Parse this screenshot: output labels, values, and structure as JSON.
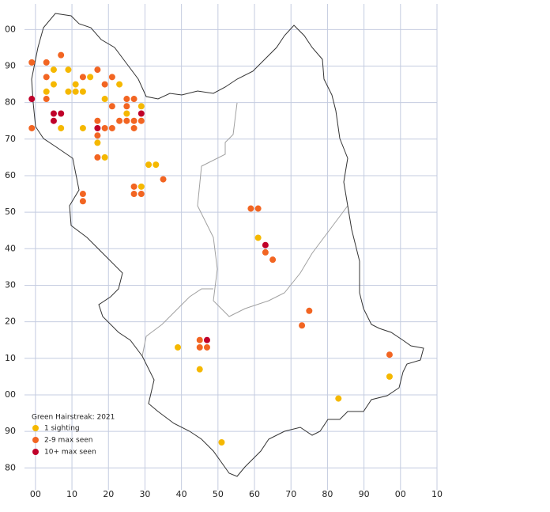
{
  "chart_data": {
    "type": "scatter",
    "title": "Green Hairstreak:  2021",
    "grid": true,
    "grid_color": "#c4cce0",
    "xlim": [
      -3,
      110
    ],
    "ylim": [
      -26,
      107
    ],
    "xticks": [
      {
        "value": 0,
        "label": "00"
      },
      10,
      20,
      30,
      40,
      50,
      60,
      70,
      80,
      90,
      {
        "value": 100,
        "label": "00"
      },
      {
        "value": 110,
        "label": "10"
      }
    ],
    "yticks": [
      {
        "value": 100,
        "label": "00"
      },
      90,
      80,
      70,
      60,
      50,
      40,
      30,
      20,
      10,
      {
        "value": 0,
        "label": "00"
      },
      {
        "value": -10,
        "label": "90"
      },
      {
        "value": -20,
        "label": "80"
      }
    ],
    "series": [
      {
        "name": "1 sighting",
        "color": "#f5b800",
        "x": [
          5,
          9,
          5,
          3,
          11,
          9,
          13,
          11,
          15,
          23,
          19,
          29,
          25,
          13,
          7,
          17,
          19,
          31,
          33,
          29,
          61,
          39,
          45,
          83,
          97,
          51
        ],
        "values": [
          89,
          89,
          85,
          83,
          83,
          83,
          83,
          85,
          87,
          85,
          81,
          79,
          77,
          73,
          73,
          69,
          65,
          63,
          63,
          57,
          43,
          13,
          7,
          -1,
          5,
          -13
        ]
      },
      {
        "name": "2-9 max seen",
        "color": "#f26522",
        "x": [
          -1,
          3,
          7,
          13,
          17,
          21,
          3,
          3,
          19,
          21,
          25,
          27,
          25,
          23,
          25,
          27,
          29,
          17,
          27,
          19,
          21,
          17,
          17,
          -1,
          27,
          27,
          29,
          35,
          13,
          13,
          59,
          61,
          63,
          65,
          75,
          73,
          45,
          45,
          47,
          97
        ],
        "values": [
          91,
          91,
          93,
          87,
          89,
          87,
          87,
          81,
          85,
          79,
          81,
          81,
          79,
          75,
          75,
          75,
          75,
          75,
          73,
          73,
          73,
          71,
          65,
          73,
          57,
          55,
          55,
          59,
          55,
          53,
          51,
          51,
          39,
          37,
          23,
          19,
          15,
          13,
          13,
          11
        ]
      },
      {
        "name": "10+ max seen",
        "color": "#c0002a",
        "x": [
          -1,
          5,
          7,
          5,
          17,
          29,
          63,
          47
        ],
        "values": [
          81,
          77,
          77,
          75,
          73,
          77,
          41,
          15
        ]
      }
    ]
  }
}
